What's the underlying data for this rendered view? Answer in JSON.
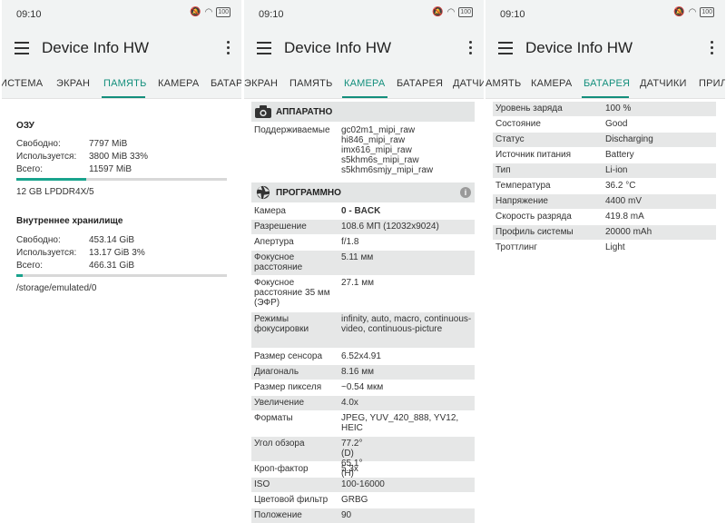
{
  "status": {
    "time": "09:10",
    "battery": "100"
  },
  "app": {
    "title": "Device Info HW"
  },
  "panel1": {
    "tabs": [
      "ИСТЕМА",
      "ЭКРАН",
      "ПАМЯТЬ",
      "КАМЕРА",
      "БАТАРЕЯ"
    ],
    "ram": {
      "title": "ОЗУ",
      "rows": [
        {
          "label": "Свободно:",
          "value": "7797 MiB"
        },
        {
          "label": "Используется:",
          "value": "3800 MiB 33%"
        },
        {
          "label": "Всего:",
          "value": "11597 MiB"
        }
      ],
      "used_fraction": 0.33,
      "type": "12 GB LPDDR4X/5"
    },
    "storage": {
      "title": "Внутреннее хранилище",
      "rows": [
        {
          "label": "Свободно:",
          "value": "453.14 GiB"
        },
        {
          "label": "Используется:",
          "value": "13.17 GiB 3%"
        },
        {
          "label": "Всего:",
          "value": "466.31 GiB"
        }
      ],
      "used_fraction": 0.03,
      "path": "/storage/emulated/0"
    }
  },
  "panel2": {
    "tabs": [
      "ЭКРАН",
      "ПАМЯТЬ",
      "КАМЕРА",
      "БАТАРЕЯ",
      "ДАТЧИ"
    ],
    "hardware": {
      "title": "АППАРАТНО",
      "supported_label": "Поддерживаемые",
      "supported_values": [
        "gc02m1_mipi_raw",
        "hi846_mipi_raw",
        "imx616_mipi_raw",
        "s5khm6s_mipi_raw",
        "s5khm6smjy_mipi_raw"
      ]
    },
    "software": {
      "title": "ПРОГРАММНО",
      "rows": [
        {
          "label": "Камера",
          "value": "0 - BACK"
        },
        {
          "label": "Разрешение",
          "value": "108.6 МП (12032x9024)"
        },
        {
          "label": "Апертура",
          "value": "f/1.8"
        },
        {
          "label": "Фокусное расстояние",
          "value": "5.11 мм"
        },
        {
          "label": "Фокусное расстояние 35 мм (ЭФР)",
          "value": "27.1 мм"
        },
        {
          "label": "Режимы фокусировки",
          "value": "infinity, auto, macro, continuous-video, continuous-picture"
        },
        {
          "label": "Размер сенсора",
          "value": "6.52x4.91"
        },
        {
          "label": "Диагональ",
          "value": "8.16 мм"
        },
        {
          "label": "Размер пикселя",
          "value": "~0.54 мкм"
        },
        {
          "label": "Увеличение",
          "value": "4.0x"
        },
        {
          "label": "Форматы",
          "value": "JPEG, YUV_420_888, YV12, HEIC"
        },
        {
          "label": "Угол обзора",
          "value": "77.2° (D) 65.1° (H)"
        },
        {
          "label": "Кроп-фактор",
          "value": "5.3x"
        },
        {
          "label": "ISO",
          "value": "100-16000"
        },
        {
          "label": "Цветовой фильтр",
          "value": "GRBG"
        },
        {
          "label": "Положение",
          "value": "90"
        }
      ]
    }
  },
  "panel3": {
    "tabs": [
      "АМЯТЬ",
      "КАМЕРА",
      "БАТАРЕЯ",
      "ДАТЧИКИ",
      "ПРИЛ"
    ],
    "battery": {
      "rows": [
        {
          "label": "Уровень заряда",
          "value": "100 %"
        },
        {
          "label": "Состояние",
          "value": "Good"
        },
        {
          "label": "Статус",
          "value": "Discharging"
        },
        {
          "label": "Источник питания",
          "value": "Battery"
        },
        {
          "label": "Тип",
          "value": "Li-ion"
        },
        {
          "label": "Температура",
          "value": "36.2 °C"
        },
        {
          "label": "Напряжение",
          "value": "4400 mV"
        },
        {
          "label": "Скорость разряда",
          "value": "419.8 mA"
        },
        {
          "label": "Профиль системы",
          "value": "20000 mAh"
        },
        {
          "label": "Троттлинг",
          "value": "Light"
        }
      ]
    }
  },
  "colors": {
    "accent": "#138f7c",
    "progress": "#19a38d",
    "row_shade": "#e6e7e7",
    "header_bg": "#e3e5e5"
  }
}
